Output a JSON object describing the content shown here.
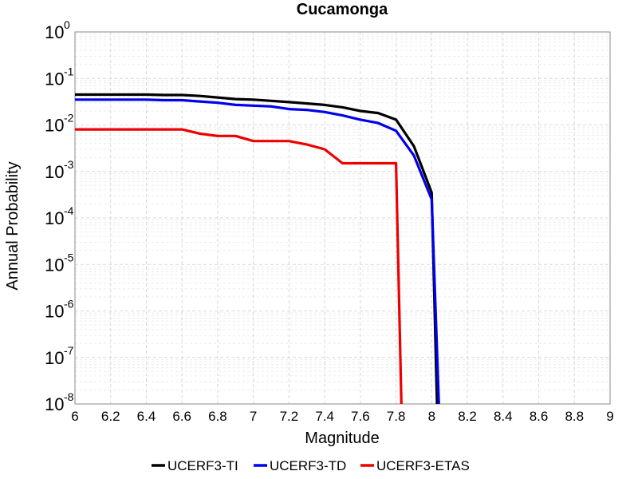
{
  "chart_data": {
    "type": "line",
    "title": "Cucamonga",
    "xlabel": "Magnitude",
    "ylabel": "Annual Probability",
    "xlim": [
      6,
      9
    ],
    "ylim": [
      1e-08,
      1
    ],
    "yscale": "log",
    "x_ticks": [
      "6",
      "6.2",
      "6.4",
      "6.6",
      "6.8",
      "7",
      "7.2",
      "7.4",
      "7.6",
      "7.8",
      "8",
      "8.2",
      "8.4",
      "8.6",
      "8.8",
      "9"
    ],
    "y_tick_base": "10",
    "y_tick_exponents": [
      "0",
      "-1",
      "-2",
      "-3",
      "-4",
      "-5",
      "-6",
      "-7",
      "-8"
    ],
    "grid": true,
    "legend_position": "bottom",
    "series": [
      {
        "name": "UCERF3-TI",
        "color": "#000000",
        "x": [
          6.0,
          6.1,
          6.2,
          6.3,
          6.4,
          6.5,
          6.6,
          6.7,
          6.8,
          6.9,
          7.0,
          7.1,
          7.2,
          7.3,
          7.4,
          7.5,
          7.6,
          7.7,
          7.8,
          7.9,
          8.0,
          8.03
        ],
        "y": [
          0.045,
          0.045,
          0.045,
          0.045,
          0.045,
          0.044,
          0.044,
          0.042,
          0.039,
          0.036,
          0.035,
          0.033,
          0.031,
          0.029,
          0.027,
          0.024,
          0.02,
          0.018,
          0.013,
          0.0035,
          0.00035,
          1e-08
        ]
      },
      {
        "name": "UCERF3-TD",
        "color": "#0000ee",
        "x": [
          6.0,
          6.1,
          6.2,
          6.3,
          6.4,
          6.5,
          6.6,
          6.7,
          6.8,
          6.9,
          7.0,
          7.1,
          7.2,
          7.3,
          7.4,
          7.5,
          7.6,
          7.7,
          7.8,
          7.9,
          8.0,
          8.04
        ],
        "y": [
          0.035,
          0.035,
          0.035,
          0.035,
          0.035,
          0.034,
          0.034,
          0.032,
          0.03,
          0.027,
          0.026,
          0.025,
          0.022,
          0.021,
          0.019,
          0.016,
          0.013,
          0.011,
          0.0075,
          0.0022,
          0.00025,
          1e-08
        ]
      },
      {
        "name": "UCERF3-ETAS",
        "color": "#ee0000",
        "x": [
          6.0,
          6.1,
          6.2,
          6.3,
          6.4,
          6.5,
          6.6,
          6.7,
          6.8,
          6.9,
          7.0,
          7.1,
          7.2,
          7.3,
          7.4,
          7.5,
          7.6,
          7.7,
          7.8,
          7.83
        ],
        "y": [
          0.008,
          0.008,
          0.008,
          0.008,
          0.008,
          0.008,
          0.008,
          0.0065,
          0.0058,
          0.0058,
          0.0045,
          0.0045,
          0.0045,
          0.0038,
          0.003,
          0.0015,
          0.0015,
          0.0015,
          0.0015,
          1e-08
        ]
      }
    ]
  }
}
